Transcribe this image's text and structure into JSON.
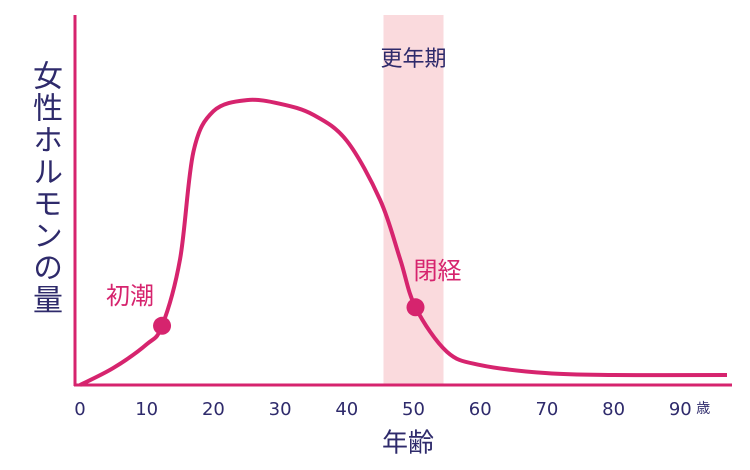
{
  "chart_data": {
    "type": "line",
    "y_label": "女性ホルモンの量",
    "x_label": "年齢",
    "x_unit": "歳",
    "x": [
      0,
      5,
      10,
      12.3,
      15,
      17,
      20,
      25,
      30,
      35,
      40,
      45,
      48,
      50.3,
      55,
      60,
      70,
      80,
      97
    ],
    "series": [
      {
        "color": "#d6246e",
        "values": [
          0,
          4.6,
          11,
          16,
          34,
          63,
          74,
          77,
          76,
          73,
          66,
          50,
          34,
          21,
          9,
          5.4,
          3.2,
          2.7,
          2.7
        ]
      }
    ],
    "xlim": [
      0,
      97
    ],
    "ylim": [
      0,
      100
    ],
    "xticks": [
      0,
      10,
      20,
      30,
      40,
      50,
      60,
      70,
      80,
      90
    ],
    "band": {
      "label": "更年期",
      "range": [
        45.5,
        54.5
      ],
      "color": "#fadadd"
    },
    "points": [
      {
        "label": "初潮",
        "x": 12.3,
        "y": 16
      },
      {
        "label": "閉経",
        "x": 50.3,
        "y": 21
      }
    ]
  }
}
